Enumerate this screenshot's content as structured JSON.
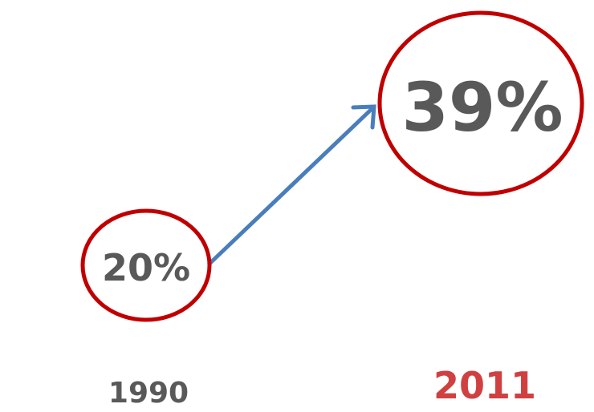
{
  "colors": {
    "circle_stroke": "#c00000",
    "arrow": "#4a7ebb",
    "value_text": "#595959",
    "year_start_text": "#595959",
    "year_end_text": "#d04040"
  },
  "start": {
    "value": "20%",
    "year": "1990"
  },
  "end": {
    "value": "39%",
    "year": "2011"
  }
}
